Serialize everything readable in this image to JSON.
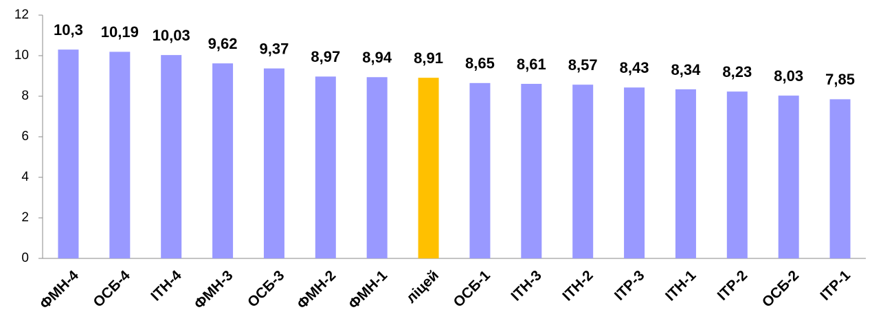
{
  "chart_data": {
    "type": "bar",
    "categories": [
      "ФМН-4",
      "ОСБ-4",
      "ІТН-4",
      "ФМН-3",
      "ОСБ-3",
      "ФМН-2",
      "ФМН-1",
      "ліцей",
      "ОСБ-1",
      "ІТН-3",
      "ІТН-2",
      "ІТР-3",
      "ІТН-1",
      "ІТР-2",
      "ОСБ-2",
      "ІТР-1"
    ],
    "values": [
      10.3,
      10.19,
      10.03,
      9.62,
      9.37,
      8.97,
      8.94,
      8.91,
      8.65,
      8.61,
      8.57,
      8.43,
      8.34,
      8.23,
      8.03,
      7.85
    ],
    "value_labels": [
      "10,3",
      "10,19",
      "10,03",
      "9,62",
      "9,37",
      "8,97",
      "8,94",
      "8,91",
      "8,65",
      "8,61",
      "8,57",
      "8,43",
      "8,34",
      "8,23",
      "8,03",
      "7,85"
    ],
    "colors": [
      "#9999ff",
      "#9999ff",
      "#9999ff",
      "#9999ff",
      "#9999ff",
      "#9999ff",
      "#9999ff",
      "#ffc000",
      "#9999ff",
      "#9999ff",
      "#9999ff",
      "#9999ff",
      "#9999ff",
      "#9999ff",
      "#9999ff",
      "#9999ff"
    ],
    "ylim": [
      0,
      12
    ],
    "yticks": [
      0,
      2,
      4,
      6,
      8,
      10,
      12
    ],
    "grid": false
  }
}
